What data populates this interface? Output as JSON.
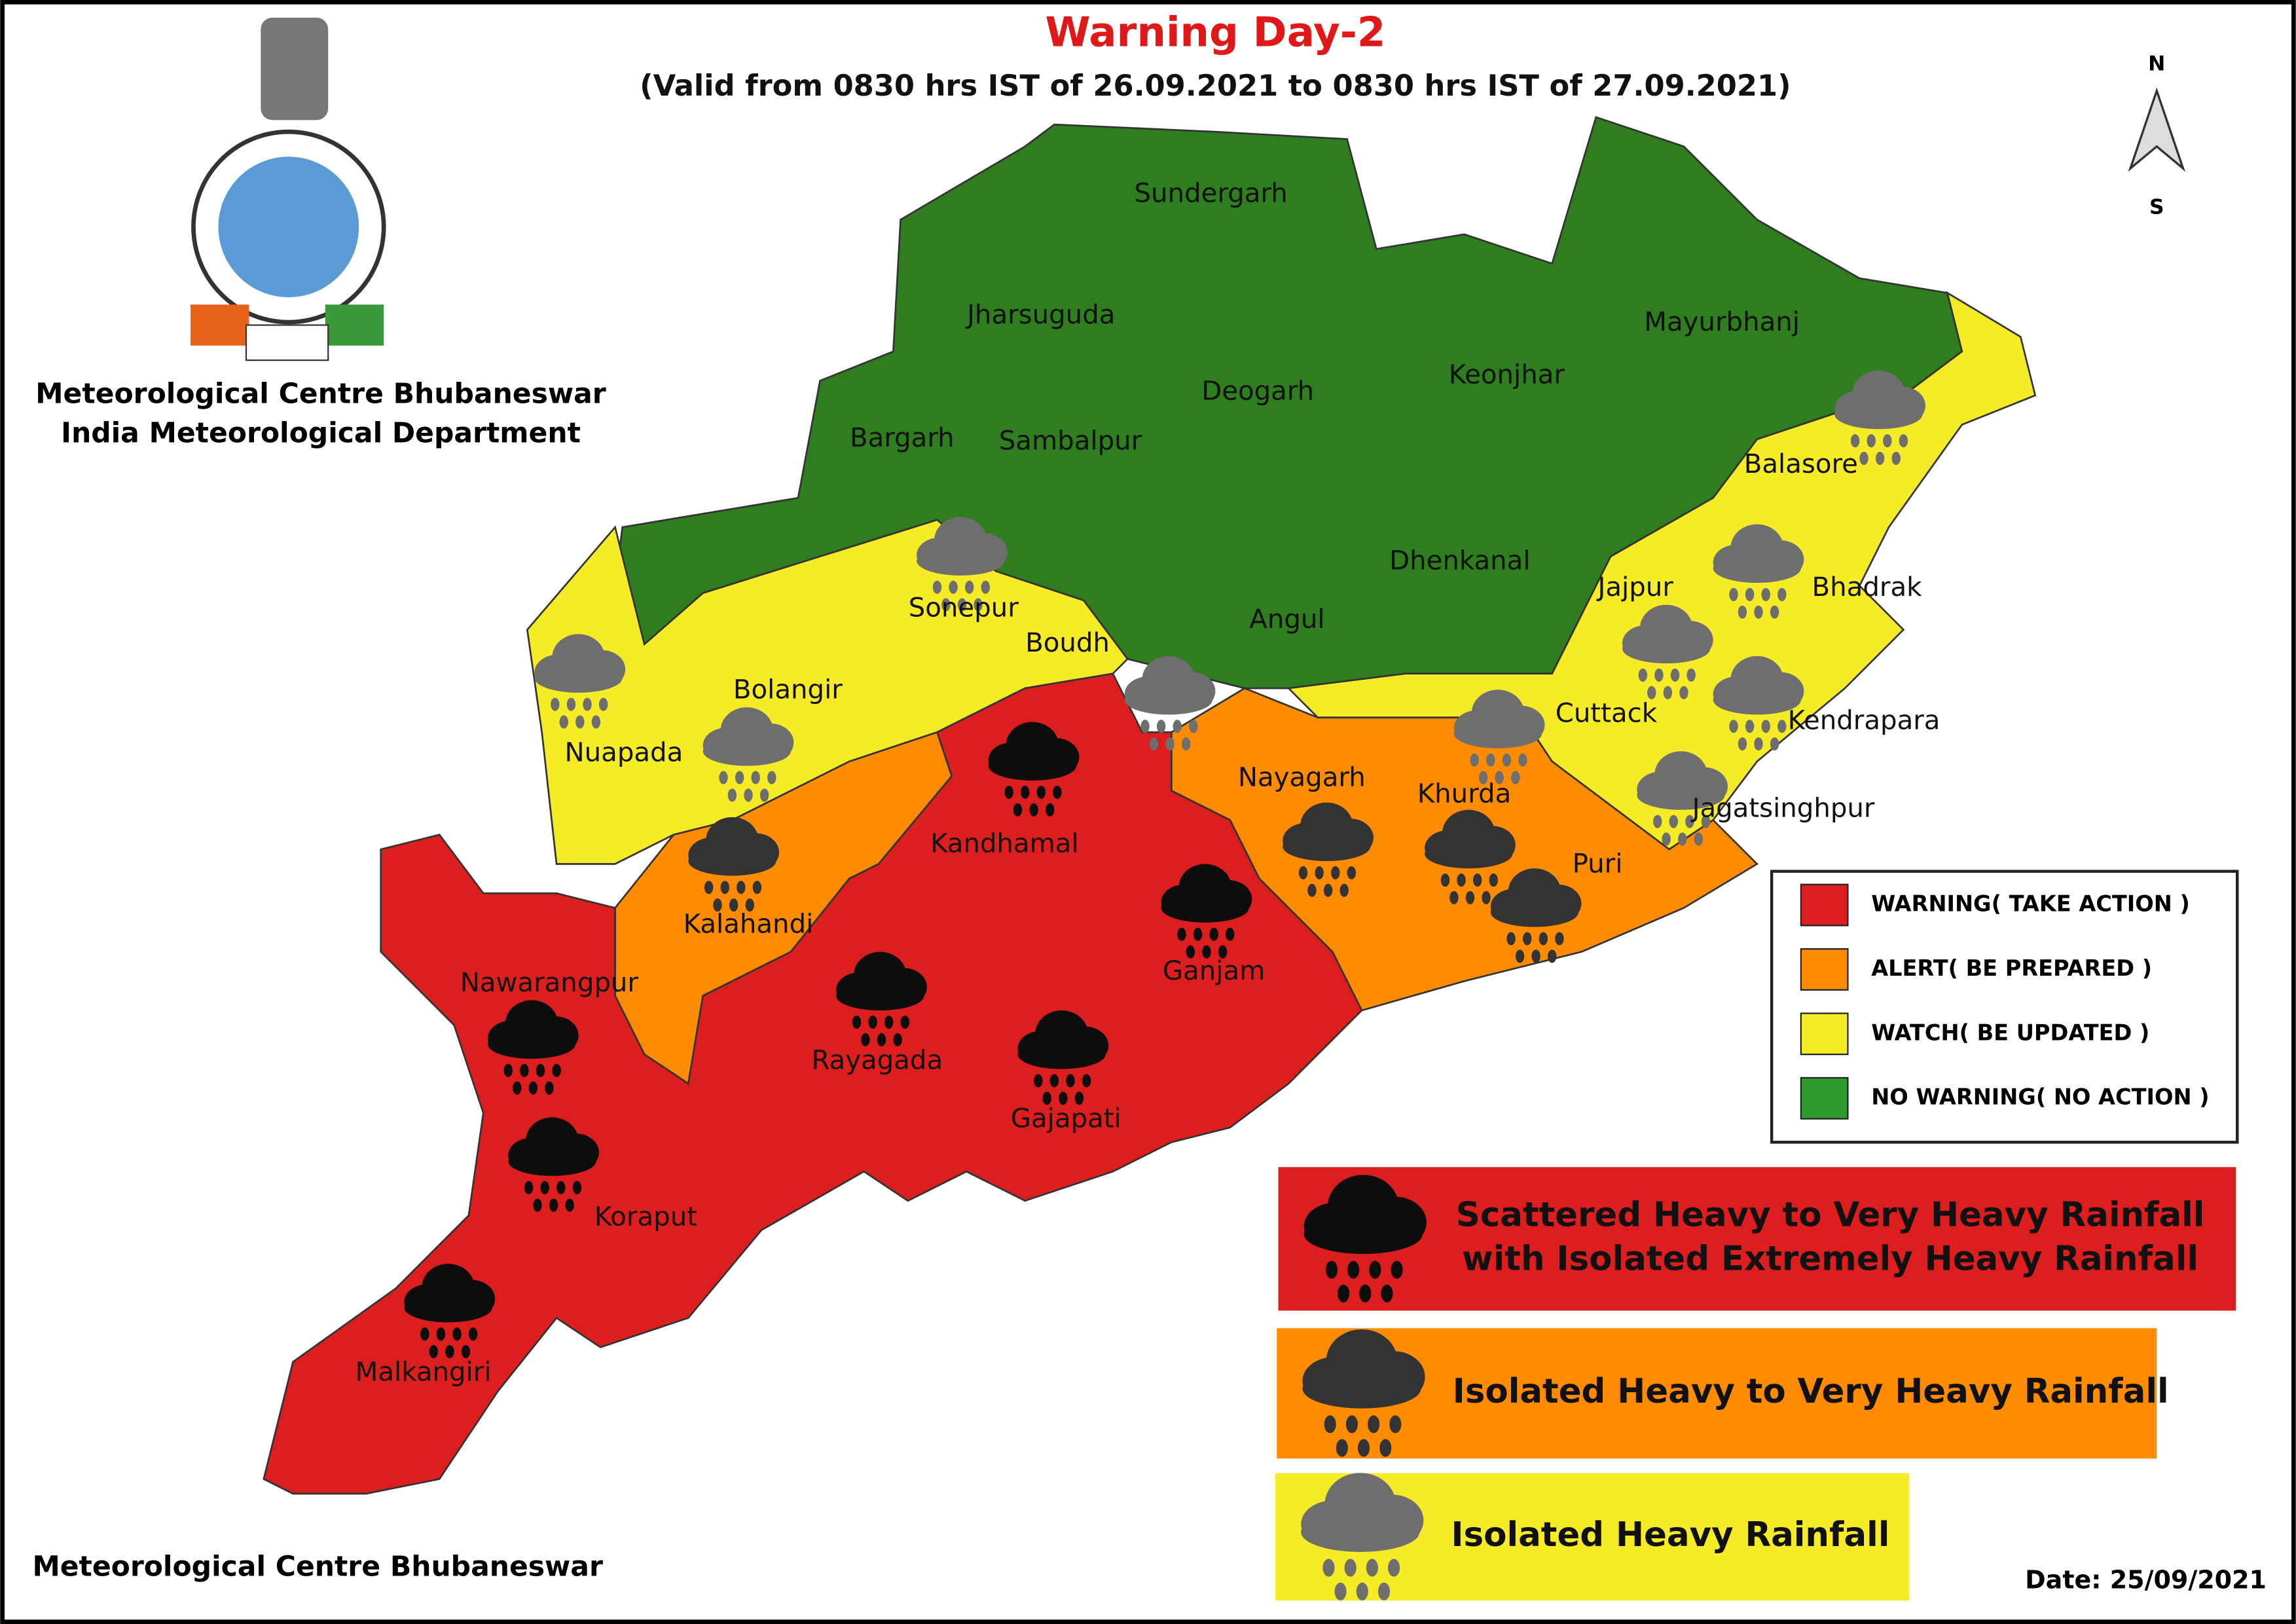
{
  "header": {
    "title": "Warning Day-2",
    "subtitle": "(Valid from 0830 hrs IST of 26.09.2021 to 0830 hrs IST of 27.09.2021)"
  },
  "organization": [
    "Meteorological Centre Bhubaneswar",
    "India Meteorological Department"
  ],
  "compass": {
    "north": "N",
    "south": "S"
  },
  "districts": [
    "Sundergarh",
    "Jharsuguda",
    "Bargarh",
    "Sambalpur",
    "Deogarh",
    "Keonjhar",
    "Mayurbhanj",
    "Balasore",
    "Bhadrak",
    "Jajpur",
    "Dhenkanal",
    "Angul",
    "Sonepur",
    "Boudh",
    "Bolangir",
    "Nuapada",
    "Cuttack",
    "Kendrapara",
    "Jagatsinghpur",
    "Khurda",
    "Nayagarh",
    "Puri",
    "Kandhamal",
    "Kalahandi",
    "Ganjam",
    "Nawarangpur",
    "Rayagada",
    "Gajapati",
    "Koraput",
    "Malkangiri"
  ],
  "legend": [
    {
      "label": "WARNING( TAKE ACTION )",
      "color": "#dc1e1e"
    },
    {
      "label": "ALERT( BE PREPARED )",
      "color": "#ff8c00"
    },
    {
      "label": "WATCH( BE UPDATED )",
      "color": "#f5eb27"
    },
    {
      "label": "NO WARNING( NO ACTION )",
      "color": "#2e9a2e"
    }
  ],
  "rainfall_legend": [
    {
      "lines": [
        "Scattered Heavy to Very Heavy Rainfall",
        "with Isolated Extremely Heavy Rainfall"
      ],
      "color": "#dc1e1e"
    },
    {
      "lines": [
        "Isolated Heavy to Very Heavy Rainfall"
      ],
      "color": "#ff8c00"
    },
    {
      "lines": [
        "Isolated Heavy Rainfall"
      ],
      "color": "#f5eb27"
    }
  ],
  "footer": "Meteorological Centre Bhubaneswar",
  "date": "Date: 25/09/2021"
}
